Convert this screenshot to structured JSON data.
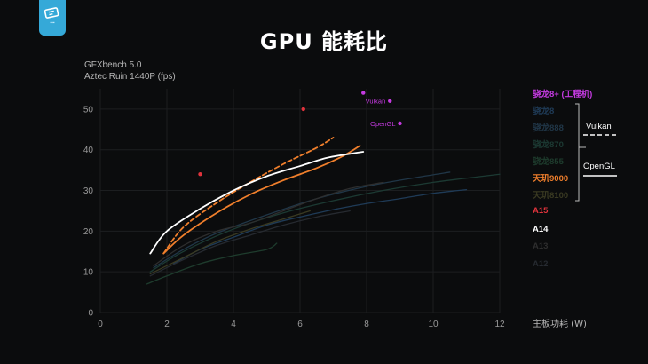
{
  "header": {
    "title": "GPU 能耗比",
    "subtitle_line1": "GFXbench 5.0",
    "subtitle_line2": "Aztec Ruin 1440P (fps)"
  },
  "chart_data": {
    "type": "line",
    "xlabel": "主板功耗 (W)",
    "ylabel": "",
    "xlim": [
      0,
      12
    ],
    "ylim": [
      0,
      55
    ],
    "x_ticks": [
      0,
      2,
      4,
      6,
      8,
      10,
      12
    ],
    "y_ticks": [
      0,
      10,
      20,
      30,
      40,
      50
    ],
    "grid": true,
    "legend_placement": "right",
    "series": [
      {
        "name": "骁龙8+ (工程机)",
        "color": "#c43ae0",
        "style": "points",
        "points": [
          [
            7.9,
            54
          ],
          [
            8.7,
            52
          ],
          [
            9.0,
            46.5
          ]
        ],
        "point_labels": [
          "",
          "Vulkan",
          "OpenGL"
        ]
      },
      {
        "name": "骁龙8",
        "color": "#1f3b57",
        "style": "solid",
        "points": [
          [
            2.2,
            12
          ],
          [
            3,
            15.5
          ],
          [
            4,
            18.5
          ],
          [
            5,
            21.5
          ],
          [
            6,
            23.5
          ],
          [
            7,
            25.3
          ],
          [
            8,
            26.8
          ],
          [
            9,
            28
          ],
          [
            10,
            29.3
          ],
          [
            11,
            30.2
          ]
        ]
      },
      {
        "name": "骁龙888",
        "color": "#203647",
        "style": "solid",
        "points": [
          [
            1.6,
            11
          ],
          [
            2.5,
            15.5
          ],
          [
            3.5,
            19.5
          ],
          [
            5,
            24
          ],
          [
            6.5,
            28
          ],
          [
            8,
            31
          ],
          [
            9.5,
            33.2
          ],
          [
            10.5,
            34.5
          ]
        ]
      },
      {
        "name": "骁龙870",
        "color": "#1c3a33",
        "style": "solid",
        "points": [
          [
            1.5,
            10
          ],
          [
            2.5,
            15
          ],
          [
            4,
            20.5
          ],
          [
            5.5,
            24.5
          ],
          [
            7,
            27.5
          ],
          [
            8.5,
            30
          ],
          [
            10,
            32
          ],
          [
            11.5,
            33.5
          ],
          [
            12,
            34
          ]
        ]
      },
      {
        "name": "骁龙855",
        "color": "#1e3c2d",
        "style": "solid",
        "points": [
          [
            1.4,
            7
          ],
          [
            2,
            9
          ],
          [
            3,
            12
          ],
          [
            4,
            14
          ],
          [
            5,
            15.5
          ],
          [
            5.3,
            17
          ]
        ]
      },
      {
        "name": "天玑9000",
        "color": "#f07f2c",
        "style": "solid",
        "points": [
          [
            1.9,
            14.5
          ],
          [
            2.5,
            19
          ],
          [
            3.5,
            24.5
          ],
          [
            4.5,
            29
          ],
          [
            5.5,
            32.5
          ],
          [
            6.5,
            35.5
          ],
          [
            7.3,
            38.5
          ],
          [
            7.8,
            41
          ]
        ]
      },
      {
        "name": "天玑9000",
        "color": "#f07f2c",
        "style": "dashed",
        "points": [
          [
            1.9,
            14.5
          ],
          [
            2.5,
            21
          ],
          [
            3.5,
            27
          ],
          [
            4.5,
            32
          ],
          [
            5.5,
            36.5
          ],
          [
            6.5,
            40.5
          ],
          [
            7,
            43
          ]
        ]
      },
      {
        "name": "天玑8100",
        "color": "#3a3a22",
        "style": "solid",
        "points": [
          [
            1.5,
            9.5
          ],
          [
            2.5,
            13.5
          ],
          [
            3.5,
            17.5
          ],
          [
            4.5,
            20.5
          ],
          [
            5.5,
            23
          ],
          [
            6.3,
            25
          ]
        ]
      },
      {
        "name": "A15",
        "color": "#e0333c",
        "style": "points",
        "points": [
          [
            3,
            34
          ],
          [
            6.1,
            50
          ]
        ]
      },
      {
        "name": "A14",
        "color": "#ffffff",
        "style": "solid",
        "points": [
          [
            1.5,
            14.5
          ],
          [
            2,
            20
          ],
          [
            3,
            25.5
          ],
          [
            4,
            30
          ],
          [
            5,
            33.5
          ],
          [
            6,
            36
          ],
          [
            6.8,
            38
          ],
          [
            7.5,
            39
          ],
          [
            7.9,
            39.5
          ]
        ]
      },
      {
        "name": "A13",
        "color": "#2e2e2e",
        "style": "solid",
        "points": [
          [
            1.6,
            11.5
          ],
          [
            2.5,
            16.5
          ],
          [
            3.5,
            20
          ],
          [
            4.5,
            22
          ],
          [
            5.5,
            25
          ],
          [
            6.5,
            28
          ],
          [
            7.5,
            30.5
          ],
          [
            8.5,
            32
          ]
        ]
      },
      {
        "name": "A12",
        "color": "#262a30",
        "style": "solid",
        "points": [
          [
            1.5,
            9
          ],
          [
            2.5,
            13
          ],
          [
            3.5,
            16.5
          ],
          [
            4.5,
            19
          ],
          [
            5.5,
            21.5
          ],
          [
            6.5,
            23.5
          ],
          [
            7.5,
            25
          ]
        ]
      }
    ],
    "legend": [
      {
        "label": "骁龙8+ (工程机)",
        "color": "#c43ae0"
      },
      {
        "label": "骁龙8",
        "color": "#1f3b57"
      },
      {
        "label": "骁龙888",
        "color": "#203647"
      },
      {
        "label": "骁龙870",
        "color": "#1c3a33"
      },
      {
        "label": "骁龙855",
        "color": "#1e3c2d"
      },
      {
        "label": "天玑9000",
        "color": "#f07f2c"
      },
      {
        "label": "天玑8100",
        "color": "#3a3a22"
      },
      {
        "label": "A15",
        "color": "#e0333c"
      },
      {
        "label": "A14",
        "color": "#ffffff"
      },
      {
        "label": "A13",
        "color": "#2e2e2e"
      },
      {
        "label": "A12",
        "color": "#262a30"
      }
    ],
    "style_key": {
      "vulkan_label": "Vulkan",
      "opengl_label": "OpenGL"
    }
  }
}
